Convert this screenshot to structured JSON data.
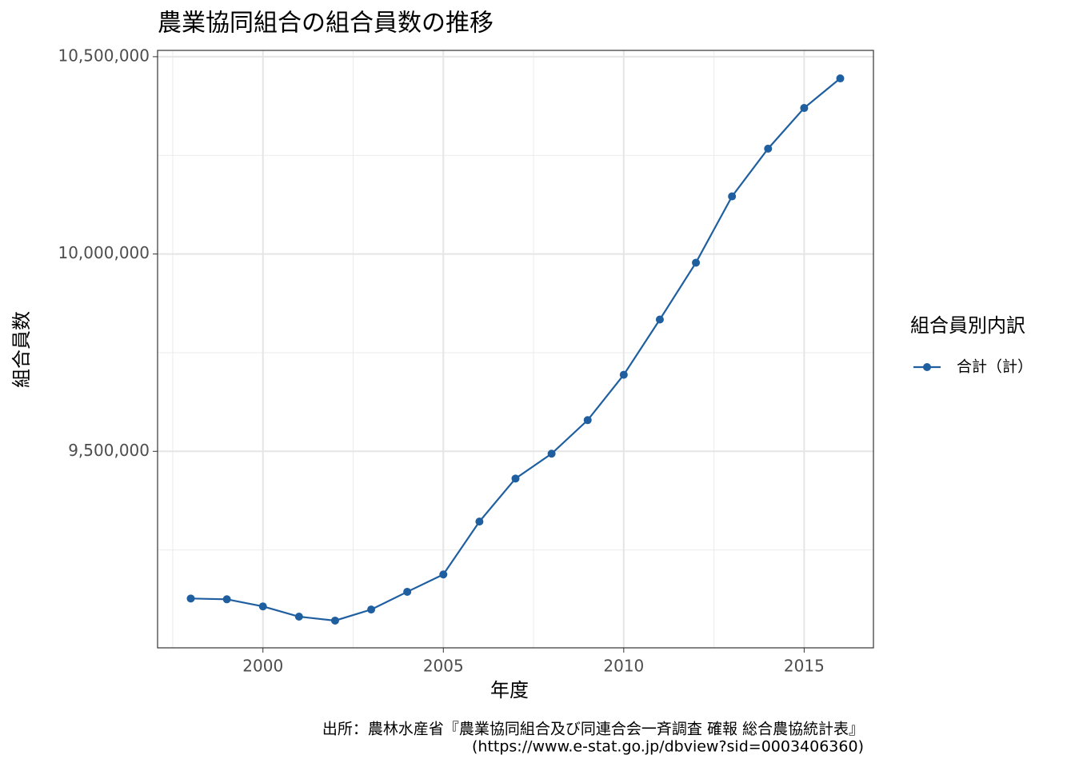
{
  "chart_data": {
    "type": "line",
    "title": "農業協同組合の組合員数の推移",
    "x_label": "年度",
    "y_label": "組合員数",
    "legend_title": "組合員別内訳",
    "legend_position": "right",
    "caption": [
      "出所：農林水産省『農業協同組合及び同連合会一斉調査 確報 総合農協統計表』",
      "(https://www.e-stat.go.jp/dbview?sid=0003406360)"
    ],
    "x": [
      1998,
      1999,
      2000,
      2001,
      2002,
      2003,
      2004,
      2005,
      2006,
      2007,
      2008,
      2009,
      2010,
      2011,
      2012,
      2013,
      2014,
      2015,
      2016
    ],
    "series": [
      {
        "name": "合計（計）",
        "color": "#1f5fa0",
        "values": [
          9127000,
          9125000,
          9107000,
          9081000,
          9071000,
          9099000,
          9144000,
          9188000,
          9322000,
          9431000,
          9494000,
          9579000,
          9694000,
          9834000,
          9978000,
          10146000,
          10267000,
          10370000,
          10445000
        ]
      }
    ],
    "xlim": [
      1997.08,
      2016.92
    ],
    "ylim": [
      9002000,
      10516000
    ],
    "xticks": [
      2000,
      2005,
      2010,
      2015
    ],
    "yticks": [
      {
        "value": 9500000,
        "label": "9,500,000"
      },
      {
        "value": 10000000,
        "label": "10,000,000"
      },
      {
        "value": 10500000,
        "label": "10,500,000"
      }
    ],
    "xminorticks": [
      1997.5,
      2002.5,
      2007.5,
      2012.5
    ],
    "yminorticks": [
      9250000,
      9750000,
      10250000
    ],
    "grid": true
  }
}
